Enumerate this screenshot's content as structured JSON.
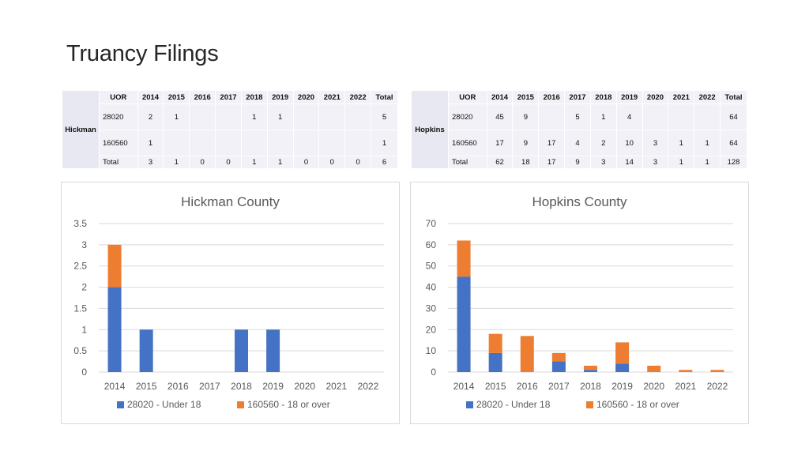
{
  "slide_title": "Truancy Filings",
  "tables": [
    {
      "county": "Hickman",
      "headers": [
        "UOR",
        "2014",
        "2015",
        "2016",
        "2017",
        "2018",
        "2019",
        "2020",
        "2021",
        "2022",
        "Total"
      ],
      "rows": [
        {
          "uor": "28020",
          "cells": [
            "2",
            "1",
            "",
            "",
            "1",
            "1",
            "",
            "",
            "",
            "5"
          ]
        },
        {
          "uor": "160560",
          "cells": [
            "1",
            "",
            "",
            "",
            "",
            "",
            "",
            "",
            "",
            "1"
          ]
        }
      ],
      "total": {
        "label": "Total",
        "cells": [
          "3",
          "1",
          "0",
          "0",
          "1",
          "1",
          "0",
          "0",
          "0",
          "6"
        ]
      }
    },
    {
      "county": "Hopkins",
      "headers": [
        "UOR",
        "2014",
        "2015",
        "2016",
        "2017",
        "2018",
        "2019",
        "2020",
        "2021",
        "2022",
        "Total"
      ],
      "rows": [
        {
          "uor": "28020",
          "cells": [
            "45",
            "9",
            "",
            "5",
            "1",
            "4",
            "",
            "",
            "",
            "64"
          ]
        },
        {
          "uor": "160560",
          "cells": [
            "17",
            "9",
            "17",
            "4",
            "2",
            "10",
            "3",
            "1",
            "1",
            "64"
          ]
        }
      ],
      "total": {
        "label": "Total",
        "cells": [
          "62",
          "18",
          "17",
          "9",
          "3",
          "14",
          "3",
          "1",
          "1",
          "128"
        ]
      }
    }
  ],
  "colors": {
    "series_blue": "#4472c4",
    "series_orange": "#ed7d31",
    "grid": "#d9d9d9",
    "axis_text": "#595959"
  },
  "chart_data": [
    {
      "type": "bar",
      "stacked": true,
      "title": "Hickman County",
      "categories": [
        "2014",
        "2015",
        "2016",
        "2017",
        "2018",
        "2019",
        "2020",
        "2021",
        "2022"
      ],
      "series": [
        {
          "name": "28020 - Under 18",
          "values": [
            2,
            1,
            0,
            0,
            1,
            1,
            0,
            0,
            0
          ]
        },
        {
          "name": "160560 - 18 or over",
          "values": [
            1,
            0,
            0,
            0,
            0,
            0,
            0,
            0,
            0
          ]
        }
      ],
      "ylim": [
        0,
        3.5
      ],
      "yticks": [
        "0",
        "0.5",
        "1",
        "1.5",
        "2",
        "2.5",
        "3",
        "3.5"
      ],
      "ytick_values": [
        0,
        0.5,
        1,
        1.5,
        2,
        2.5,
        3,
        3.5
      ],
      "grid": true,
      "legend": "bottom"
    },
    {
      "type": "bar",
      "stacked": true,
      "title": "Hopkins County",
      "categories": [
        "2014",
        "2015",
        "2016",
        "2017",
        "2018",
        "2019",
        "2020",
        "2021",
        "2022"
      ],
      "series": [
        {
          "name": "28020 - Under 18",
          "values": [
            45,
            9,
            0,
            5,
            1,
            4,
            0,
            0,
            0
          ]
        },
        {
          "name": "160560 - 18 or over",
          "values": [
            17,
            9,
            17,
            4,
            2,
            10,
            3,
            1,
            1
          ]
        }
      ],
      "ylim": [
        0,
        70
      ],
      "yticks": [
        "0",
        "10",
        "20",
        "30",
        "40",
        "50",
        "60",
        "70"
      ],
      "ytick_values": [
        0,
        10,
        20,
        30,
        40,
        50,
        60,
        70
      ],
      "grid": true,
      "legend": "bottom"
    }
  ]
}
